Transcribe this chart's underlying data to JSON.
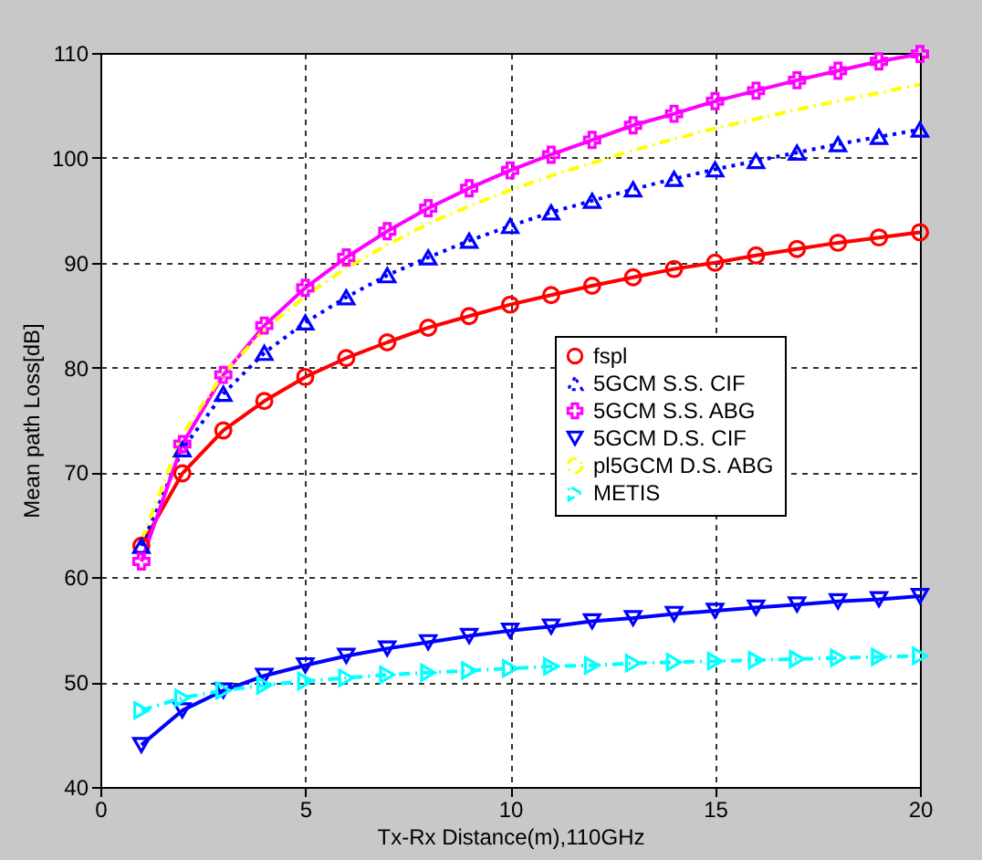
{
  "chart_data": {
    "type": "line",
    "xlabel": "Tx-Rx Distance(m),110GHz",
    "ylabel": "Mean path Loss[dB]",
    "x": [
      1,
      2,
      3,
      4,
      5,
      6,
      7,
      8,
      9,
      10,
      11,
      12,
      13,
      14,
      15,
      16,
      17,
      18,
      19,
      20
    ],
    "xlim": [
      0,
      20
    ],
    "xticks": [
      0,
      5,
      10,
      15,
      20
    ],
    "ylim": [
      40,
      110
    ],
    "yticks": [
      40,
      50,
      60,
      70,
      80,
      90,
      100,
      110
    ],
    "grid": true,
    "legend": "right",
    "series": [
      {
        "name": "fspl",
        "color": "#ff0000",
        "marker": "circle",
        "line_style": "solid",
        "values": [
          63,
          69.9,
          74.0,
          76.8,
          79.1,
          80.9,
          82.4,
          83.8,
          84.9,
          86.0,
          86.9,
          87.8,
          88.6,
          89.4,
          90.0,
          90.7,
          91.3,
          91.9,
          92.4,
          92.9
        ]
      },
      {
        "name": "5GCM S.S. CIF",
        "color": "#0000ff",
        "marker": "triangle",
        "line_style": "dotted",
        "values": [
          63,
          72.2,
          77.5,
          81.4,
          84.3,
          86.7,
          88.8,
          90.5,
          92.1,
          93.5,
          94.8,
          95.9,
          97.0,
          98.0,
          98.9,
          99.7,
          100.5,
          101.3,
          102.0,
          102.7
        ]
      },
      {
        "name": "5GCM  S.S. ABG",
        "color": "#ff00ff",
        "marker": "cross",
        "line_style": "solid",
        "values": [
          61.5,
          72.7,
          79.3,
          84.0,
          87.6,
          90.5,
          93.0,
          95.2,
          97.1,
          98.8,
          100.3,
          101.7,
          103.1,
          104.2,
          105.4,
          106.4,
          107.4,
          108.3,
          109.2,
          109.9
        ]
      },
      {
        "name": "5GCM D.S. CIF",
        "color": "#0000ff",
        "marker": "triangle-down",
        "line_style": "solid",
        "values": [
          44,
          47.3,
          49.2,
          50.6,
          51.6,
          52.5,
          53.2,
          53.8,
          54.4,
          54.9,
          55.3,
          55.8,
          56.1,
          56.5,
          56.8,
          57.1,
          57.4,
          57.7,
          57.9,
          58.2
        ]
      },
      {
        "name": "pl5GCM D.S. ABG",
        "color": "#ffff00",
        "marker": "none",
        "line_style": "dashdot",
        "values": [
          63.5,
          73.6,
          79.4,
          83.6,
          86.8,
          89.5,
          91.7,
          93.7,
          95.4,
          96.9,
          98.3,
          99.5,
          100.7,
          101.8,
          102.8,
          103.7,
          104.6,
          105.4,
          106.2,
          107.0
        ]
      },
      {
        "name": "METIS",
        "color": "#00ffff",
        "marker": "triangle-right",
        "line_style": "dashdot",
        "values": [
          47.3,
          48.5,
          49.2,
          49.7,
          50.1,
          50.4,
          50.7,
          50.9,
          51.1,
          51.3,
          51.5,
          51.6,
          51.8,
          51.9,
          52.0,
          52.1,
          52.2,
          52.3,
          52.4,
          52.5
        ]
      }
    ]
  }
}
